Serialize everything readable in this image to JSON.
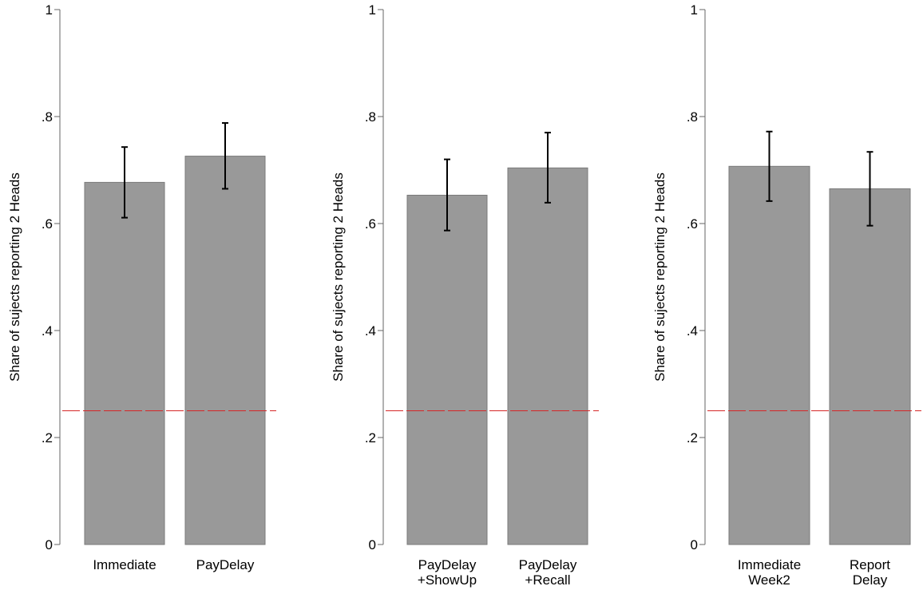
{
  "chart_data": [
    {
      "type": "bar",
      "categories": [
        [
          "Immediate"
        ],
        [
          "PayDelay"
        ]
      ],
      "values": [
        0.677,
        0.726
      ],
      "error_low": [
        0.611,
        0.665
      ],
      "error_high": [
        0.743,
        0.788
      ],
      "ylabel": "Share of sujects reporting 2 Heads",
      "ylim": [
        0,
        1
      ],
      "yticks": [
        0,
        0.2,
        0.4,
        0.6,
        0.8,
        1
      ],
      "ytick_labels": [
        "0",
        ".2",
        ".4",
        ".6",
        ".8",
        "1"
      ],
      "reference_line": 0.25,
      "grid": false
    },
    {
      "type": "bar",
      "categories": [
        [
          "PayDelay",
          "+ShowUp"
        ],
        [
          "PayDelay",
          "+Recall"
        ]
      ],
      "values": [
        0.653,
        0.704
      ],
      "error_low": [
        0.587,
        0.639
      ],
      "error_high": [
        0.72,
        0.77
      ],
      "ylabel": "Share of sujects reporting 2 Heads",
      "ylim": [
        0,
        1
      ],
      "yticks": [
        0,
        0.2,
        0.4,
        0.6,
        0.8,
        1
      ],
      "ytick_labels": [
        "0",
        ".2",
        ".4",
        ".6",
        ".8",
        "1"
      ],
      "reference_line": 0.25,
      "grid": false
    },
    {
      "type": "bar",
      "categories": [
        [
          "Immediate",
          "Week2"
        ],
        [
          "Report",
          "Delay"
        ]
      ],
      "values": [
        0.707,
        0.665
      ],
      "error_low": [
        0.642,
        0.596
      ],
      "error_high": [
        0.772,
        0.734
      ],
      "ylabel": "Share of sujects reporting 2 Heads",
      "ylim": [
        0,
        1
      ],
      "yticks": [
        0,
        0.2,
        0.4,
        0.6,
        0.8,
        1
      ],
      "ytick_labels": [
        "0",
        ".2",
        ".4",
        ".6",
        ".8",
        "1"
      ],
      "reference_line": 0.25,
      "grid": false
    }
  ],
  "colors": {
    "bar_fill": "#999999",
    "bar_stroke": "#7a7a7a",
    "axis": "#666666",
    "error_bar": "#000000",
    "reference_line": "#d62728"
  }
}
